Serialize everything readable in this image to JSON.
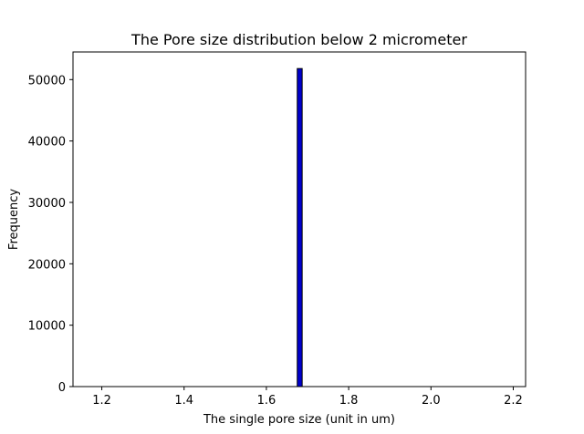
{
  "chart_data": {
    "type": "bar",
    "title": "The Pore size distribution below 2 micrometer",
    "xlabel": "The single pore size (unit in um)",
    "ylabel": "Frequency",
    "xlim": [
      1.13,
      2.23
    ],
    "ylim": [
      0,
      54500
    ],
    "x_ticks": [
      1.2,
      1.4,
      1.6,
      1.8,
      2.0,
      2.2
    ],
    "x_tick_labels": [
      "1.2",
      "1.4",
      "1.6",
      "1.8",
      "2.0",
      "2.2"
    ],
    "y_ticks": [
      0,
      10000,
      20000,
      30000,
      40000,
      50000
    ],
    "y_tick_labels": [
      "0",
      "10000",
      "20000",
      "30000",
      "40000",
      "50000"
    ],
    "bars": [
      {
        "x_start": 1.675,
        "x_end": 1.687,
        "value": 51800
      }
    ],
    "bar_color": "#0000cc",
    "bar_edge_color": "#000000",
    "grid": false
  }
}
